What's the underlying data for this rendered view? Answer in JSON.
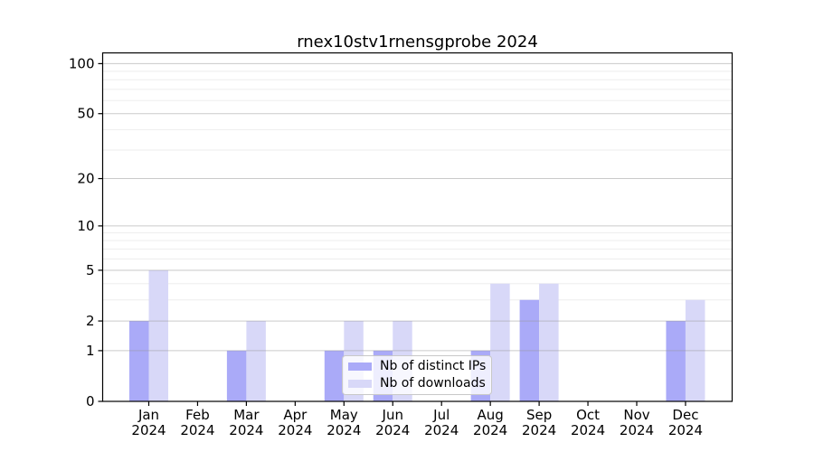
{
  "chart_data": {
    "type": "bar",
    "title": "rnex10stv1rnensgprobe 2024",
    "categories": [
      "Jan",
      "Feb",
      "Mar",
      "Apr",
      "May",
      "Jun",
      "Jul",
      "Aug",
      "Sep",
      "Oct",
      "Nov",
      "Dec"
    ],
    "year_label": "2024",
    "series": [
      {
        "name": "Nb of distinct IPs",
        "color": "#aaaaf8",
        "values": [
          2,
          0,
          1,
          0,
          1,
          1,
          0,
          1,
          3,
          0,
          0,
          2
        ]
      },
      {
        "name": "Nb of downloads",
        "color": "#d8d8f8",
        "values": [
          5,
          0,
          2,
          0,
          2,
          2,
          0,
          4,
          4,
          0,
          0,
          3
        ]
      }
    ],
    "y_axis": {
      "scale": "log1p",
      "ylim": [
        0,
        116
      ],
      "major_ticks": [
        100,
        50,
        20,
        10,
        5,
        2,
        1,
        0
      ],
      "minor_ticks": [
        90,
        80,
        70,
        60,
        40,
        30,
        9,
        8,
        7,
        6,
        4,
        3
      ]
    },
    "grid": {
      "major_color": "#969696",
      "major_opacity": 0.5,
      "minor_color": "#ededed"
    },
    "axis_color": "#000000",
    "legend_position": "lower center-right"
  }
}
